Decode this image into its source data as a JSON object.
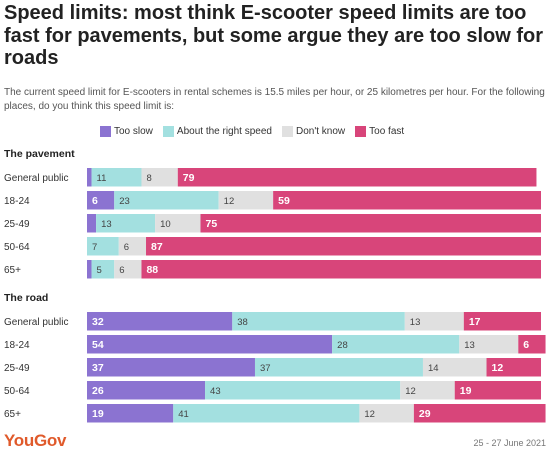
{
  "title": "Speed limits: most think E-scooter speed limits are too fast for pavements, but some argue they are too slow for roads",
  "subtitle": "The current speed limit for E-scooters in rental schemes is 15.5 miles per hour, or 25 kilometres per hour. For the following places, do you think this speed limit is:",
  "legend": [
    {
      "label": "Too slow",
      "color": "#8b73d1"
    },
    {
      "label": "About the right speed",
      "color": "#a3e0e0"
    },
    {
      "label": "Don't know",
      "color": "#e0e0e0"
    },
    {
      "label": "Too fast",
      "color": "#d8457a"
    }
  ],
  "footer": {
    "brand": "YouGov",
    "date": "25 - 27 June 2021"
  },
  "chart_data": {
    "type": "bar",
    "orientation": "horizontal",
    "stacked": true,
    "series_names": [
      "Too slow",
      "About the right speed",
      "Don't know",
      "Too fast"
    ],
    "groups": [
      {
        "title": "The pavement",
        "rows": [
          {
            "label": "General public",
            "values": [
              1,
              11,
              8,
              79
            ]
          },
          {
            "label": "18-24",
            "values": [
              6,
              23,
              12,
              59
            ]
          },
          {
            "label": "25-49",
            "values": [
              2,
              13,
              10,
              75
            ]
          },
          {
            "label": "50-64",
            "values": [
              0,
              7,
              6,
              87
            ]
          },
          {
            "label": "65+",
            "values": [
              1,
              5,
              6,
              88
            ]
          }
        ]
      },
      {
        "title": "The road",
        "rows": [
          {
            "label": "General public",
            "values": [
              32,
              38,
              13,
              17
            ]
          },
          {
            "label": "18-24",
            "values": [
              54,
              28,
              13,
              6
            ]
          },
          {
            "label": "25-49",
            "values": [
              37,
              37,
              14,
              12
            ]
          },
          {
            "label": "50-64",
            "values": [
              26,
              43,
              12,
              19
            ]
          },
          {
            "label": "65+",
            "values": [
              19,
              41,
              12,
              29
            ]
          }
        ]
      }
    ],
    "label_threshold": 4,
    "xlim": [
      0,
      100
    ]
  }
}
